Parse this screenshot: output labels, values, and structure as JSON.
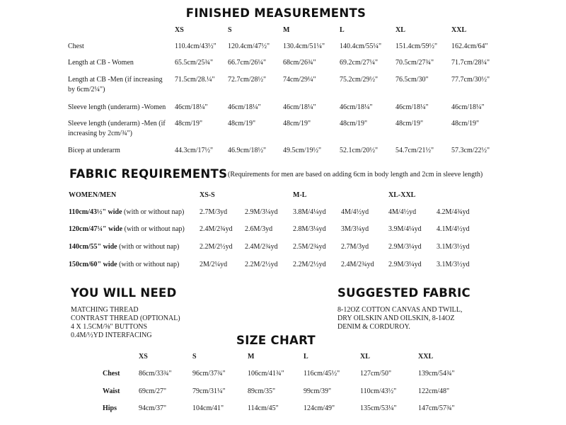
{
  "finished": {
    "title": "FINISHED MEASUREMENTS",
    "sizes": [
      "XS",
      "S",
      "M",
      "L",
      "XL",
      "XXL"
    ],
    "rows": [
      {
        "label": [
          "Chest"
        ],
        "values": [
          "110.4cm/43½\"",
          "120.4cm/47½\"",
          "130.4cm/51¼\"",
          "140.4cm/55¼\"",
          "151.4cm/59½\"",
          "162.4cm/64\""
        ]
      },
      {
        "label": [
          "Length at CB - Women"
        ],
        "values": [
          "65.5cm/25¾\"",
          "66.7cm/26¼\"",
          "68cm/26¾\"",
          "69.2cm/27¼\"",
          "70.5cm/27¾\"",
          "71.7cm/28¼\""
        ]
      },
      {
        "label": [
          "Length at CB -Men (if increasing",
          "by 6cm/2¼\")"
        ],
        "values": [
          "71.5cm/28.¼\"",
          "72.7cm/28½\"",
          "74cm/29¼\"",
          "75.2cm/29½\"",
          "76.5cm/30\"",
          "77.7cm/30½\""
        ]
      },
      {
        "label": [
          "Sleeve length (underarm) -Women"
        ],
        "values": [
          "46cm/18¼\"",
          "46cm/18¼\"",
          "46cm/18¼\"",
          "46cm/18¼\"",
          "46cm/18¼\"",
          "46cm/18¼\""
        ]
      },
      {
        "label": [
          "Sleeve length (underarm) -Men (if",
          "increasing by 2cm/¾\")"
        ],
        "values": [
          "48cm/19\"",
          "48cm/19\"",
          "48cm/19\"",
          "48cm/19\"",
          "48cm/19\"",
          "48cm/19\""
        ]
      },
      {
        "label": [
          "Bicep at underarm"
        ],
        "values": [
          "44.3cm/17½\"",
          "46.9cm/18½\"",
          "49.5cm/19½\"",
          "52.1cm/20½\"",
          "54.7cm/21½\"",
          "57.3cm/22½\""
        ]
      }
    ]
  },
  "fabric": {
    "title": "FABRIC REQUIREMENTS",
    "note": "(Requirements for men are based on adding 6cm in body length and 2cm in sleeve length)",
    "header_label": "WOMEN/MEN",
    "groups": [
      "XS-S",
      "M-L",
      "XL-XXL"
    ],
    "rows": [
      {
        "width": "110cm/43½\" wide",
        "nap": " (with or without nap)",
        "values": [
          "2.7M/3yd",
          "2.9M/3¼yd",
          "3.8M/4¼yd",
          "4M/4½yd",
          "4M/4½yd",
          "4.2M/4¾yd"
        ]
      },
      {
        "width": "120cm/47¼\" wide",
        "nap": " (with or without nap)",
        "values": [
          "2.4M/2¾yd",
          "2.6M/3yd",
          "2.8M/3¼yd",
          "3M/3¼yd",
          "3.9M/4¼yd",
          "4.1M/4½yd"
        ]
      },
      {
        "width": "140cm/55\" wide",
        "nap": " (with or without nap)",
        "values": [
          "2.2M/2½yd",
          "2.4M/2¾yd",
          "2.5M/2¾yd",
          "2.7M/3yd",
          "2.9M/3¼yd",
          "3.1M/3½yd"
        ]
      },
      {
        "width": "150cm/60\" wide",
        "nap": " (with or without nap)",
        "values": [
          "2M/2¼yd",
          "2.2M/2½yd",
          "2.2M/2½yd",
          "2.4M/2¾yd",
          "2.9M/3¼yd",
          "3.1M/3½yd"
        ]
      }
    ]
  },
  "need": {
    "title": "YOU WILL NEED",
    "items": [
      "MATCHING THREAD",
      "CONTRAST THREAD (OPTIONAL)",
      "4 X 1.5CM/⅝\" BUTTONS",
      "0.4M/½YD INTERFACING"
    ]
  },
  "suggested": {
    "title": "SUGGESTED FABRIC",
    "lines": [
      "8-12OZ COTTON CANVAS AND TWILL,",
      "DRY OILSKIN AND OILSKIN, 8-14OZ",
      "DENIM & CORDUROY."
    ]
  },
  "size_chart": {
    "title": "SIZE CHART",
    "sizes": [
      "XS",
      "S",
      "M",
      "L",
      "XL",
      "XXL"
    ],
    "rows": [
      {
        "label": "Chest",
        "values": [
          "86cm/33¾\"",
          "96cm/37¾\"",
          "106cm/41¾\"",
          "116cm/45½\"",
          "127cm/50\"",
          "139cm/54¾\""
        ]
      },
      {
        "label": "Waist",
        "values": [
          "69cm/27\"",
          "79cm/31¼\"",
          "89cm/35\"",
          "99cm/39\"",
          "110cm/43½\"",
          "122cm/48\""
        ]
      },
      {
        "label": "Hips",
        "values": [
          "94cm/37\"",
          "104cm/41\"",
          "114cm/45\"",
          "124cm/49\"",
          "135cm/53¼\"",
          "147cm/57¾\""
        ]
      }
    ]
  }
}
